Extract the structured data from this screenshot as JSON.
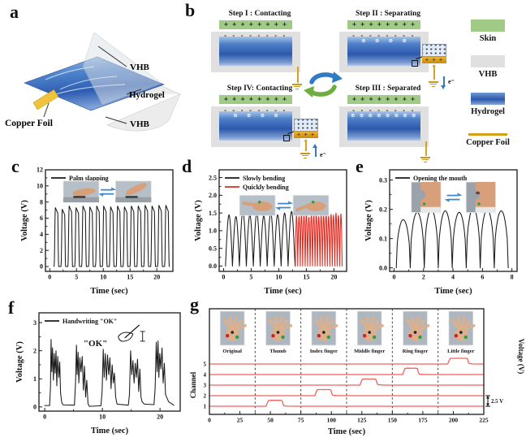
{
  "panels": {
    "a": "a",
    "b": "b",
    "c": "c",
    "d": "d",
    "e": "e",
    "f": "f",
    "g": "g"
  },
  "panel_a": {
    "label_vhb_top": "VHB",
    "label_hydrogel": "Hydrogel",
    "label_copper": "Copper Foil",
    "label_vhb_bottom": "VHB"
  },
  "panel_b": {
    "inset_charges": "+ + + +",
    "steps": [
      {
        "key": "I",
        "title": "Step I : Contacting",
        "skin_charges": "+ + + + + + + +",
        "gel_top_charges": "- - - - - - - -",
        "gel_inner_charges": "",
        "electron_label": ""
      },
      {
        "key": "II",
        "title": "Step II : Separating",
        "skin_charges": "+ + + + + + + +",
        "gel_top_charges": "- - - - - - - -",
        "gel_inner_charges": "⊕ ⊕ ⊕ ⊕",
        "electron_label": "e⁻"
      },
      {
        "key": "IV",
        "title": "Step IV: Contacting",
        "skin_charges": "+ + + + + + + +",
        "gel_top_charges": "- - - - - - - -",
        "gel_inner_charges": "⊕ ⊕ ⊕ ⊕",
        "electron_label": "e⁻"
      },
      {
        "key": "III",
        "title": "Step III : Separated",
        "skin_charges": "+ + + + + + + +",
        "gel_top_charges": "- - - - - - - -",
        "gel_inner_charges": "⊕ ⊕ ⊕ ⊕ ⊕ ⊕ ⊕ ⊕",
        "electron_label": ""
      }
    ]
  },
  "material_legend": {
    "items": [
      {
        "label": "Skin",
        "color": "#9fcb87"
      },
      {
        "label": "VHB",
        "color": "#e0e0e0"
      },
      {
        "label": "Hydrogel",
        "color": "#2d58ac"
      },
      {
        "label": "Copper Foil",
        "color": "#d4a017"
      }
    ]
  },
  "chart_data": [
    {
      "id": "c",
      "type": "line",
      "xlabel": "Time (sec)",
      "ylabel": "Voltage (V)",
      "xlim": [
        -0.8,
        23
      ],
      "ylim": [
        -0.6,
        12
      ],
      "xticks": [
        0,
        5,
        10,
        15,
        20
      ],
      "yticks": [
        0,
        2,
        4,
        6,
        8,
        10,
        12
      ],
      "legend": [
        {
          "label": "Palm slapping",
          "color": "#1a1a1a"
        }
      ],
      "inset_photos": {
        "variant": "palm"
      },
      "series": [
        {
          "name": "Palm slapping",
          "color": "#1a1a1a",
          "pulses": {
            "start": 1.25,
            "period": 1.29,
            "width": 0.85,
            "amps": [
              7.3,
              7.1,
              7.5,
              7.3,
              7.5,
              7.4,
              7.5,
              7.5,
              7.4,
              7.5,
              7.4,
              7.5,
              7.5,
              7.6,
              7.5,
              7.6,
              7.6
            ]
          }
        }
      ]
    },
    {
      "id": "d",
      "type": "line",
      "xlabel": "Time (sec)",
      "ylabel": "Voltage (V)",
      "xlim": [
        -0.8,
        22.3
      ],
      "ylim": [
        -0.15,
        2.72
      ],
      "xticks": [
        0,
        5,
        10,
        15,
        20
      ],
      "yticks": [
        0,
        0.5,
        1,
        1.5,
        2,
        2.5
      ],
      "ytick_labels": [
        "0.0",
        "0.5",
        "1.0",
        "1.5",
        "2.0",
        "2.5"
      ],
      "legend": [
        {
          "label": "Slowly bending",
          "color": "#1a1a1a"
        },
        {
          "label": "Quickly bending",
          "color": "#e0281e"
        }
      ],
      "inset_photos": {
        "variant": "finger"
      },
      "series": [
        {
          "name": "Slowly bending",
          "color": "#1a1a1a",
          "arches": {
            "start": 0.35,
            "period": 1.26,
            "exp": 1,
            "amps": [
              1.45,
              1.4,
              1.55,
              1.45,
              1.5,
              1.42,
              1.52,
              1.45,
              1.5,
              1.55
            ]
          }
        },
        {
          "name": "Quickly bending",
          "color": "#e0281e",
          "arches": {
            "start": 13.0,
            "period": 0.447,
            "exp": 1,
            "amps": [
              1.45,
              1.4,
              1.48,
              1.42,
              1.5,
              1.38,
              1.46,
              1.44,
              1.5,
              1.4,
              1.47,
              1.42,
              1.49,
              1.41,
              1.46,
              1.44,
              1.5,
              1.43,
              1.47
            ]
          }
        }
      ]
    },
    {
      "id": "e",
      "type": "line",
      "xlabel": "Time (sec)",
      "ylabel": "Voltage (V)",
      "xlim": [
        -0.3,
        8.35
      ],
      "ylim": [
        -0.012,
        0.335
      ],
      "xticks": [
        0,
        2,
        4,
        6,
        8
      ],
      "yticks": [
        0,
        0.1,
        0.2,
        0.3
      ],
      "ytick_labels": [
        "0.0",
        "0.1",
        "0.2",
        "0.3"
      ],
      "legend": [
        {
          "label": "Opening the mouth",
          "color": "#1a1a1a"
        }
      ],
      "inset_photos": {
        "variant": "mouth"
      },
      "series": [
        {
          "name": "Opening the mouth",
          "color": "#1a1a1a",
          "arches": {
            "start": 0.15,
            "period": 0.95,
            "exp": 0.45,
            "amps": [
              0.165,
              0.19,
              0.2,
              0.195,
              0.19,
              0.205,
              0.2,
              0.195
            ]
          }
        }
      ]
    },
    {
      "id": "f",
      "type": "line",
      "xlabel": "Time (sec)",
      "ylabel": "Voltage (V)",
      "xlim": [
        -1,
        23.5
      ],
      "ylim": [
        -0.15,
        3.35
      ],
      "xticks": [
        0,
        10,
        20
      ],
      "yticks": [
        0,
        1,
        2,
        3
      ],
      "legend": [
        {
          "label": "Handwriting \"OK\"",
          "color": "#1a1a1a"
        }
      ],
      "annotation": "\"OK\"",
      "series": [
        {
          "name": "Handwriting OK",
          "color": "#1a1a1a",
          "points": [
            [
              0,
              0.05
            ],
            [
              0.85,
              0.05
            ],
            [
              1.0,
              0.7
            ],
            [
              1.1,
              2.4
            ],
            [
              1.22,
              1.25
            ],
            [
              1.35,
              2.1
            ],
            [
              1.5,
              0.95
            ],
            [
              1.65,
              1.9
            ],
            [
              1.8,
              1.2
            ],
            [
              1.95,
              2.0
            ],
            [
              2.1,
              0.75
            ],
            [
              2.25,
              1.8
            ],
            [
              2.45,
              1.05
            ],
            [
              2.6,
              1.6
            ],
            [
              2.75,
              0.5
            ],
            [
              2.95,
              0.15
            ],
            [
              3.2,
              0.07
            ],
            [
              5.15,
              0.06
            ],
            [
              5.35,
              0.9
            ],
            [
              5.5,
              2.2
            ],
            [
              5.62,
              1.15
            ],
            [
              5.78,
              1.95
            ],
            [
              5.92,
              0.85
            ],
            [
              6.1,
              1.75
            ],
            [
              6.3,
              1.25
            ],
            [
              6.5,
              1.8
            ],
            [
              6.7,
              0.6
            ],
            [
              6.9,
              1.45
            ],
            [
              7.1,
              0.35
            ],
            [
              7.3,
              0.95
            ],
            [
              7.5,
              0.12
            ],
            [
              7.75,
              0.02
            ],
            [
              9.75,
              0.04
            ],
            [
              9.95,
              0.55
            ],
            [
              10.15,
              2.05
            ],
            [
              10.3,
              1.05
            ],
            [
              10.5,
              1.9
            ],
            [
              10.7,
              0.95
            ],
            [
              10.9,
              1.85
            ],
            [
              11.1,
              1.15
            ],
            [
              11.3,
              1.75
            ],
            [
              11.5,
              0.65
            ],
            [
              11.7,
              1.5
            ],
            [
              11.9,
              0.85
            ],
            [
              12.1,
              1.2
            ],
            [
              12.3,
              0.35
            ],
            [
              12.55,
              0.1
            ],
            [
              14.5,
              0.06
            ],
            [
              14.7,
              0.45
            ],
            [
              14.9,
              2.0
            ],
            [
              15.1,
              1.15
            ],
            [
              15.3,
              1.65
            ],
            [
              15.5,
              0.85
            ],
            [
              15.7,
              1.55
            ],
            [
              15.9,
              1.05
            ],
            [
              16.1,
              1.7
            ],
            [
              16.3,
              0.55
            ],
            [
              16.5,
              1.35
            ],
            [
              16.7,
              0.35
            ],
            [
              16.9,
              0.18
            ],
            [
              17.3,
              0.1
            ],
            [
              18.95,
              0.08
            ],
            [
              19.15,
              0.65
            ],
            [
              19.35,
              2.3
            ],
            [
              19.5,
              1.25
            ],
            [
              19.65,
              2.35
            ],
            [
              19.8,
              1.05
            ],
            [
              19.95,
              1.9
            ],
            [
              20.15,
              1.35
            ],
            [
              20.35,
              2.1
            ],
            [
              20.55,
              0.85
            ],
            [
              20.75,
              1.55
            ],
            [
              20.95,
              0.45
            ],
            [
              21.2,
              0.32
            ],
            [
              21.5,
              0.18
            ],
            [
              22.4,
              0.06
            ]
          ]
        }
      ]
    },
    {
      "id": "g",
      "type": "channels",
      "xlabel": "Time (sec)",
      "ylabel_left": "Channel",
      "ylabel_right": "Voltage (V)",
      "xlim": [
        0,
        225
      ],
      "xticks": [
        0,
        25,
        50,
        75,
        100,
        125,
        150,
        175,
        200,
        225
      ],
      "channels": [
        1,
        2,
        3,
        4,
        5
      ],
      "volts_per_spacing": 2.5,
      "scale_label": "2.5 V",
      "trace_color": "#f2605a",
      "dividers": [
        37.5,
        75,
        112.5,
        150,
        187.5
      ],
      "photo_labels": [
        "Original",
        "Thumb",
        "Index finger",
        "Middle finger",
        "Ring finger",
        "Little finger"
      ],
      "pulses": [
        {
          "channel": 1,
          "t0": 47,
          "t1": 60,
          "v": 1.4
        },
        {
          "channel": 2,
          "t0": 87,
          "t1": 100,
          "v": 1.45
        },
        {
          "channel": 3,
          "t0": 124,
          "t1": 137,
          "v": 1.45
        },
        {
          "channel": 4,
          "t0": 159,
          "t1": 171,
          "v": 1.5
        },
        {
          "channel": 5,
          "t0": 196,
          "t1": 212,
          "v": 1.35
        }
      ]
    }
  ]
}
